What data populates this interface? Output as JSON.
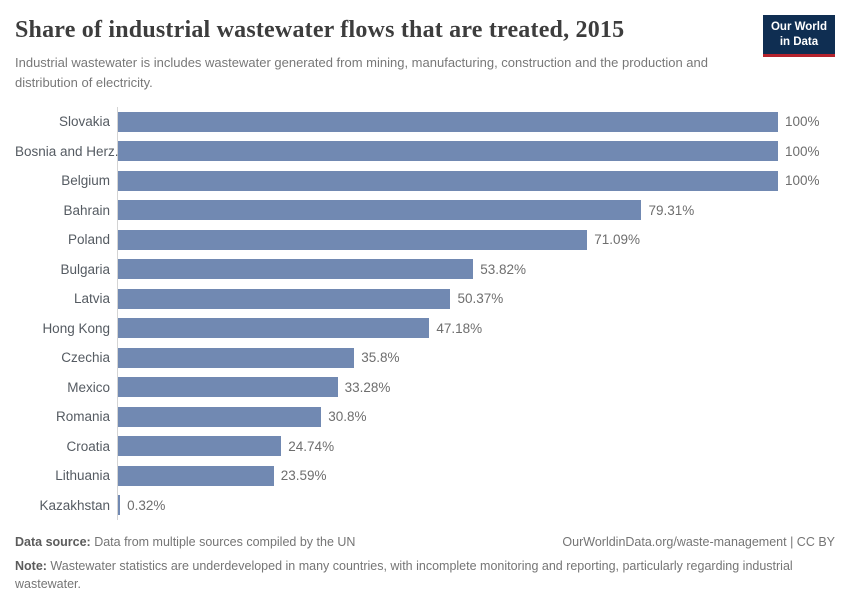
{
  "header": {
    "title": "Share of industrial wastewater flows that are treated, 2015",
    "subtitle": "Industrial wastewater is includes wastewater generated from mining, manufacturing, construction and the production and distribution of electricity.",
    "logo": {
      "line1": "Our World",
      "line2": "in Data"
    }
  },
  "chart_data": {
    "type": "bar",
    "orientation": "horizontal",
    "title": "Share of industrial wastewater flows that are treated, 2015",
    "categories": [
      "Slovakia",
      "Bosnia and Herz.",
      "Belgium",
      "Bahrain",
      "Poland",
      "Bulgaria",
      "Latvia",
      "Hong Kong",
      "Czechia",
      "Mexico",
      "Romania",
      "Croatia",
      "Lithuania",
      "Kazakhstan"
    ],
    "values": [
      100,
      100,
      100,
      79.31,
      71.09,
      53.82,
      50.37,
      47.18,
      35.8,
      33.28,
      30.8,
      24.74,
      23.59,
      0.32
    ],
    "value_labels": [
      "100%",
      "100%",
      "100%",
      "79.31%",
      "71.09%",
      "53.82%",
      "50.37%",
      "47.18%",
      "35.8%",
      "33.28%",
      "30.8%",
      "24.74%",
      "23.59%",
      "0.32%"
    ],
    "xlabel": "",
    "ylabel": "",
    "xlim": [
      0,
      100
    ],
    "grid": false,
    "legend": "none",
    "bar_color": "#7189b2"
  },
  "footer": {
    "datasource_label": "Data source:",
    "datasource_text": " Data from multiple sources compiled by the UN",
    "link_text": "OurWorldinData.org/waste-management | CC BY",
    "note_label": "Note:",
    "note_text": " Wastewater statistics are underdeveloped in many countries, with incomplete monitoring and reporting, particularly regarding industrial wastewater."
  },
  "colors": {
    "bar": "#7189b2",
    "axis_line": "#d4d4d4",
    "logo_background": "#0f2e52",
    "logo_underline": "#b5232d",
    "title_text": "#3d3d3d",
    "subtitle_text": "#787878",
    "label_text": "#555b62",
    "value_text": "#6e6e6e"
  }
}
